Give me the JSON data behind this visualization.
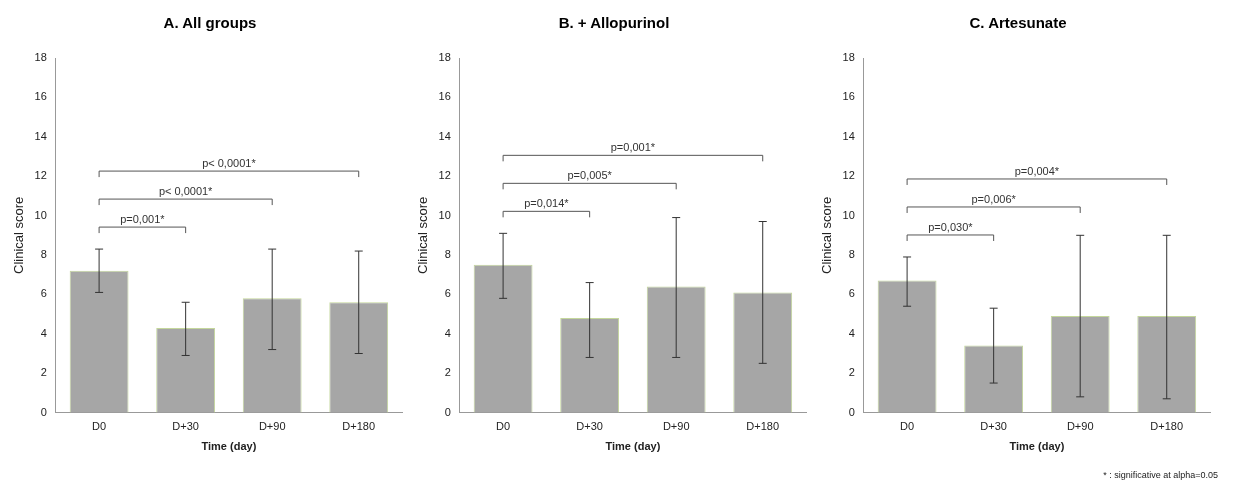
{
  "chart_data": [
    {
      "type": "bar",
      "title": "A. All groups",
      "xlabel": "Time (day)",
      "ylabel": "Clinical score",
      "categories": [
        "D0",
        "D+30",
        "D+90",
        "D+180"
      ],
      "values": [
        7.2,
        4.3,
        5.8,
        5.6
      ],
      "color": "#a6a6a6",
      "errors": [
        [
          6.1,
          8.3
        ],
        [
          2.9,
          5.6
        ],
        [
          3.2,
          8.3
        ],
        [
          3.0,
          8.2
        ]
      ],
      "ylim": [
        0,
        18
      ],
      "yticks": [
        0,
        2,
        4,
        6,
        8,
        10,
        12,
        14,
        16,
        18
      ],
      "grid": false,
      "legend": false,
      "annotations": [
        "p=0,001*",
        "p< 0,0001*",
        "p< 0,0001*"
      ]
    },
    {
      "type": "bar",
      "title": "B. + Allopurinol",
      "xlabel": "Time (day)",
      "ylabel": "Clinical score",
      "categories": [
        "D0",
        "D+30",
        "D+90",
        "D+180"
      ],
      "values": [
        7.5,
        4.8,
        6.4,
        6.1
      ],
      "color": "#a6a6a6",
      "errors": [
        [
          5.8,
          9.1
        ],
        [
          2.8,
          6.6
        ],
        [
          2.8,
          9.9
        ],
        [
          2.5,
          9.7
        ]
      ],
      "ylim": [
        0,
        18
      ],
      "yticks": [
        0,
        2,
        4,
        6,
        8,
        10,
        12,
        14,
        16,
        18
      ],
      "grid": false,
      "legend": false,
      "annotations": [
        "p=0,014*",
        "p=0,005*",
        "p=0,001*"
      ]
    },
    {
      "type": "bar",
      "title": "C. Artesunate",
      "xlabel": "Time (day)",
      "ylabel": "Clinical score",
      "categories": [
        "D0",
        "D+30",
        "D+90",
        "D+180"
      ],
      "values": [
        6.7,
        3.4,
        4.9,
        4.9
      ],
      "color": "#a6a6a6",
      "errors": [
        [
          5.4,
          7.9
        ],
        [
          1.5,
          5.3
        ],
        [
          0.8,
          9.0
        ],
        [
          0.7,
          9.0
        ]
      ],
      "ylim": [
        0,
        18
      ],
      "yticks": [
        0,
        2,
        4,
        6,
        8,
        10,
        12,
        14,
        16,
        18
      ],
      "grid": false,
      "legend": false,
      "annotations": [
        "p=0,030*",
        "p=0,006*",
        "p=0,004*",
        "* : significative at alpha=0.05"
      ]
    }
  ]
}
